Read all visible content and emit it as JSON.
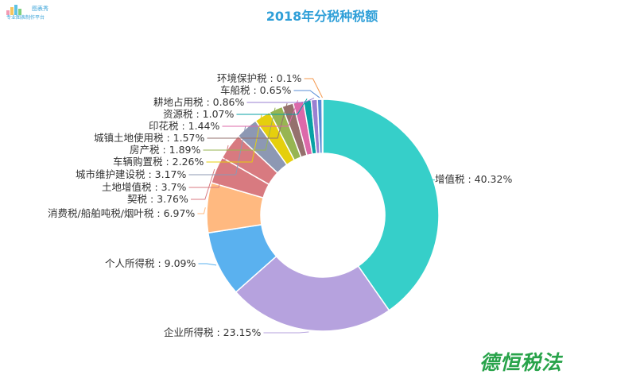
{
  "logo": {
    "name": "图表秀",
    "tagline": "专业图表制作平台"
  },
  "watermark": "德恒税法",
  "chart_data": {
    "type": "pie",
    "variant": "donut",
    "title": "2018年分税种税额",
    "unit": "%",
    "legend": "none",
    "slices": [
      {
        "label": "增值税",
        "value": 40.32,
        "display": "40.32%",
        "color": "#36cfc9"
      },
      {
        "label": "企业所得税",
        "value": 23.15,
        "display": "23.15%",
        "color": "#b6a2de"
      },
      {
        "label": "个人所得税",
        "value": 9.09,
        "display": "9.09%",
        "color": "#5ab1ef"
      },
      {
        "label": "消费税/船舶吨税/烟叶税",
        "value": 6.97,
        "display": "6.97%",
        "color": "#ffb980"
      },
      {
        "label": "契税",
        "value": 3.76,
        "display": "3.76%",
        "color": "#d87a80"
      },
      {
        "label": "土地增值税",
        "value": 3.7,
        "display": "3.7%",
        "color": "#d87a80"
      },
      {
        "label": "城市维护建设税",
        "value": 3.17,
        "display": "3.17%",
        "color": "#8d98b3"
      },
      {
        "label": "车辆购置税",
        "value": 2.26,
        "display": "2.26%",
        "color": "#e5cf0d"
      },
      {
        "label": "房产税",
        "value": 1.89,
        "display": "1.89%",
        "color": "#97b552"
      },
      {
        "label": "城镇土地使用税",
        "value": 1.57,
        "display": "1.57%",
        "color": "#95706d"
      },
      {
        "label": "印花税",
        "value": 1.44,
        "display": "1.44%",
        "color": "#dc69aa"
      },
      {
        "label": "资源税",
        "value": 1.07,
        "display": "1.07%",
        "color": "#07a2a4"
      },
      {
        "label": "耕地占用税",
        "value": 0.86,
        "display": "0.86%",
        "color": "#9a7fd1"
      },
      {
        "label": "车船税",
        "value": 0.65,
        "display": "0.65%",
        "color": "#588dd5"
      },
      {
        "label": "环境保护税",
        "value": 0.1,
        "display": "0.1%",
        "color": "#f5994e"
      }
    ]
  }
}
